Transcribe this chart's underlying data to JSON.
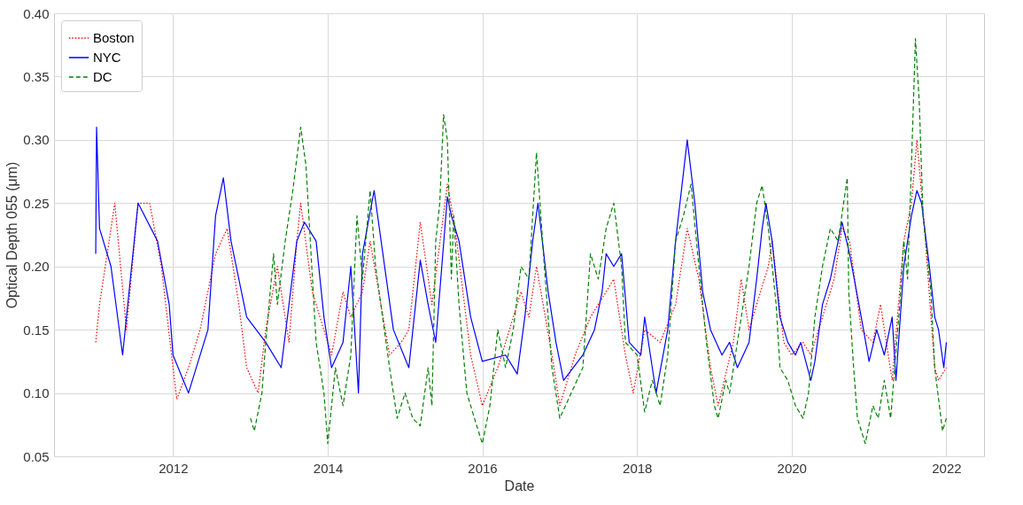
{
  "chart_data": {
    "type": "line",
    "xlabel": "Date",
    "ylabel": "Optical Depth 055 (μm)",
    "xlim": [
      "2010-06-18",
      "2022-06-28"
    ],
    "xticks": [
      {
        "value": "2012-01-01",
        "label": "2012"
      },
      {
        "value": "2014-01-01",
        "label": "2014"
      },
      {
        "value": "2016-01-01",
        "label": "2016"
      },
      {
        "value": "2018-01-01",
        "label": "2018"
      },
      {
        "value": "2020-01-01",
        "label": "2020"
      },
      {
        "value": "2022-01-01",
        "label": "2022"
      }
    ],
    "ylim": [
      0.05,
      0.4
    ],
    "yticks": [
      {
        "value": 0.05,
        "label": "0.05"
      },
      {
        "value": 0.1,
        "label": "0.10"
      },
      {
        "value": 0.15,
        "label": "0.15"
      },
      {
        "value": 0.2,
        "label": "0.20"
      },
      {
        "value": 0.25,
        "label": "0.25"
      },
      {
        "value": 0.3,
        "label": "0.30"
      },
      {
        "value": 0.35,
        "label": "0.35"
      },
      {
        "value": 0.4,
        "label": "0.40"
      }
    ],
    "grid": true,
    "legend": "top left",
    "series": [
      {
        "name": "Boston",
        "color": "#ff0000",
        "line_style": "dotted",
        "x": [
          "2011-01-01",
          "2011-01-19",
          "2011-04-01",
          "2011-05-26",
          "2011-07-20",
          "2011-09-13",
          "2011-11-07",
          "2012-01-01",
          "2012-01-19",
          "2012-03-14",
          "2012-05-08",
          "2012-07-20",
          "2012-09-13",
          "2012-11-07",
          "2012-12-14",
          "2013-02-06",
          "2013-03-14",
          "2013-05-08",
          "2013-07-02",
          "2013-08-08",
          "2013-08-26",
          "2013-10-20",
          "2013-11-25",
          "2014-01-19",
          "2014-03-14",
          "2014-04-20",
          "2014-06-14",
          "2014-07-20",
          "2014-10-20",
          "2014-12-14",
          "2015-01-19",
          "2015-03-14",
          "2015-05-08",
          "2015-07-20",
          "2015-08-26",
          "2015-11-07",
          "2016-01-01",
          "2016-03-14",
          "2016-04-20",
          "2016-07-02",
          "2016-08-08",
          "2016-09-13",
          "2016-11-25",
          "2017-01-01",
          "2017-03-14",
          "2017-05-26",
          "2017-08-08",
          "2017-09-13",
          "2017-11-07",
          "2017-12-14",
          "2018-02-06",
          "2018-04-20",
          "2018-07-02",
          "2018-08-26",
          "2018-10-20",
          "2018-12-14",
          "2019-01-19",
          "2019-04-01",
          "2019-05-08",
          "2019-06-14",
          "2019-07-20",
          "2019-09-13",
          "2019-10-01",
          "2019-11-25",
          "2020-01-01",
          "2020-02-24",
          "2020-04-01",
          "2020-05-26",
          "2020-07-20",
          "2020-08-26",
          "2020-10-01",
          "2020-11-25",
          "2021-01-19",
          "2021-02-24",
          "2021-04-20",
          "2021-06-14",
          "2021-07-20",
          "2021-08-15",
          "2021-09-20",
          "2021-11-07",
          "2021-11-25",
          "2022-01-01"
        ],
        "values": [
          0.14,
          0.17,
          0.25,
          0.15,
          0.25,
          0.25,
          0.2,
          0.12,
          0.095,
          0.12,
          0.15,
          0.21,
          0.23,
          0.17,
          0.12,
          0.1,
          0.15,
          0.2,
          0.14,
          0.22,
          0.25,
          0.18,
          0.16,
          0.13,
          0.18,
          0.16,
          0.18,
          0.22,
          0.13,
          0.14,
          0.15,
          0.235,
          0.17,
          0.265,
          0.23,
          0.13,
          0.09,
          0.12,
          0.14,
          0.18,
          0.16,
          0.2,
          0.13,
          0.09,
          0.13,
          0.16,
          0.18,
          0.19,
          0.13,
          0.1,
          0.15,
          0.14,
          0.17,
          0.23,
          0.19,
          0.12,
          0.09,
          0.14,
          0.19,
          0.15,
          0.17,
          0.2,
          0.22,
          0.14,
          0.13,
          0.14,
          0.13,
          0.16,
          0.19,
          0.23,
          0.22,
          0.15,
          0.14,
          0.17,
          0.11,
          0.22,
          0.25,
          0.3,
          0.23,
          0.12,
          0.11,
          0.12
        ]
      },
      {
        "name": "NYC",
        "color": "#0000ff",
        "line_style": "solid",
        "x": [
          "2011-01-01",
          "2011-01-05",
          "2011-01-19",
          "2011-03-14",
          "2011-05-08",
          "2011-07-20",
          "2011-10-20",
          "2011-12-14",
          "2012-01-01",
          "2012-03-14",
          "2012-06-14",
          "2012-07-20",
          "2012-08-26",
          "2012-10-01",
          "2012-12-14",
          "2013-03-14",
          "2013-05-26",
          "2013-07-02",
          "2013-08-08",
          "2013-09-13",
          "2013-11-07",
          "2013-12-14",
          "2014-01-19",
          "2014-03-14",
          "2014-04-20",
          "2014-05-26",
          "2014-06-14",
          "2014-08-08",
          "2014-11-07",
          "2015-01-19",
          "2015-03-14",
          "2015-04-20",
          "2015-05-26",
          "2015-07-20",
          "2015-08-08",
          "2015-09-13",
          "2015-11-07",
          "2016-01-01",
          "2016-04-20",
          "2016-06-14",
          "2016-07-20",
          "2016-08-26",
          "2016-09-20",
          "2016-11-07",
          "2016-12-14",
          "2017-01-19",
          "2017-04-20",
          "2017-06-14",
          "2017-07-20",
          "2017-08-08",
          "2017-09-13",
          "2017-10-20",
          "2017-11-25",
          "2018-01-19",
          "2018-02-06",
          "2018-03-14",
          "2018-04-01",
          "2018-05-26",
          "2018-07-02",
          "2018-08-26",
          "2018-10-01",
          "2018-11-07",
          "2018-12-14",
          "2019-02-06",
          "2019-03-14",
          "2019-04-20",
          "2019-06-14",
          "2019-07-20",
          "2019-08-15",
          "2019-09-02",
          "2019-10-01",
          "2019-11-07",
          "2019-12-14",
          "2020-01-19",
          "2020-02-13",
          "2020-04-01",
          "2020-04-20",
          "2020-05-26",
          "2020-07-02",
          "2020-08-08",
          "2020-08-26",
          "2020-10-01",
          "2020-11-25",
          "2021-01-01",
          "2021-02-06",
          "2021-03-14",
          "2021-04-20",
          "2021-05-08",
          "2021-06-14",
          "2021-07-20",
          "2021-08-15",
          "2021-09-06",
          "2021-10-13",
          "2021-11-07",
          "2021-11-25",
          "2021-12-20",
          "2022-01-01"
        ],
        "values": [
          0.21,
          0.31,
          0.23,
          0.2,
          0.13,
          0.25,
          0.22,
          0.17,
          0.13,
          0.1,
          0.15,
          0.24,
          0.27,
          0.22,
          0.16,
          0.14,
          0.12,
          0.17,
          0.22,
          0.235,
          0.22,
          0.16,
          0.12,
          0.14,
          0.2,
          0.1,
          0.21,
          0.26,
          0.15,
          0.12,
          0.205,
          0.17,
          0.14,
          0.255,
          0.24,
          0.22,
          0.16,
          0.125,
          0.13,
          0.115,
          0.16,
          0.22,
          0.25,
          0.18,
          0.14,
          0.11,
          0.13,
          0.15,
          0.18,
          0.21,
          0.2,
          0.21,
          0.14,
          0.13,
          0.16,
          0.12,
          0.1,
          0.15,
          0.22,
          0.3,
          0.25,
          0.18,
          0.15,
          0.13,
          0.14,
          0.12,
          0.14,
          0.19,
          0.23,
          0.25,
          0.22,
          0.16,
          0.14,
          0.13,
          0.14,
          0.11,
          0.125,
          0.17,
          0.19,
          0.22,
          0.235,
          0.21,
          0.16,
          0.125,
          0.15,
          0.13,
          0.16,
          0.11,
          0.2,
          0.24,
          0.26,
          0.25,
          0.2,
          0.16,
          0.15,
          0.12,
          0.14
        ]
      },
      {
        "name": "DC",
        "color": "#008000",
        "line_style": "dashed",
        "x": [
          "2013-01-01",
          "2013-01-19",
          "2013-02-24",
          "2013-03-14",
          "2013-04-20",
          "2013-05-08",
          "2013-06-14",
          "2013-07-20",
          "2013-08-26",
          "2013-09-20",
          "2013-11-07",
          "2013-12-14",
          "2014-01-01",
          "2014-02-06",
          "2014-03-14",
          "2014-04-20",
          "2014-05-19",
          "2014-06-14",
          "2014-07-20",
          "2014-08-15",
          "2014-10-20",
          "2014-11-25",
          "2015-01-01",
          "2015-02-06",
          "2015-03-14",
          "2015-04-20",
          "2015-05-08",
          "2015-05-26",
          "2015-06-14",
          "2015-07-02",
          "2015-07-20",
          "2015-08-08",
          "2015-08-19",
          "2015-09-13",
          "2015-10-20",
          "2015-11-25",
          "2016-01-01",
          "2016-02-06",
          "2016-03-14",
          "2016-04-20",
          "2016-05-26",
          "2016-07-02",
          "2016-08-08",
          "2016-09-13",
          "2016-10-20",
          "2016-11-25",
          "2017-01-01",
          "2017-02-24",
          "2017-04-20",
          "2017-05-26",
          "2017-07-02",
          "2017-08-08",
          "2017-09-13",
          "2017-10-20",
          "2017-11-07",
          "2018-01-01",
          "2018-02-06",
          "2018-03-14",
          "2018-04-20",
          "2018-05-26",
          "2018-07-02",
          "2018-08-08",
          "2018-09-13",
          "2018-10-20",
          "2018-11-25",
          "2019-01-01",
          "2019-01-19",
          "2019-02-24",
          "2019-03-14",
          "2019-04-20",
          "2019-06-14",
          "2019-07-20",
          "2019-08-15",
          "2019-09-13",
          "2019-10-20",
          "2019-11-07",
          "2019-12-14",
          "2020-01-19",
          "2020-02-24",
          "2020-03-21",
          "2020-04-20",
          "2020-05-26",
          "2020-07-02",
          "2020-08-08",
          "2020-09-20",
          "2020-09-27",
          "2020-10-20",
          "2020-11-07",
          "2020-12-14",
          "2021-01-19",
          "2021-02-13",
          "2021-03-14",
          "2021-04-13",
          "2021-05-26",
          "2021-06-14",
          "2021-07-02",
          "2021-07-20",
          "2021-08-08",
          "2021-08-26",
          "2021-09-13",
          "2021-10-20",
          "2021-11-07",
          "2021-12-14",
          "2022-01-01"
        ],
        "values": [
          0.08,
          0.07,
          0.1,
          0.14,
          0.21,
          0.17,
          0.22,
          0.26,
          0.31,
          0.28,
          0.14,
          0.1,
          0.06,
          0.12,
          0.09,
          0.13,
          0.24,
          0.19,
          0.26,
          0.2,
          0.12,
          0.08,
          0.1,
          0.08,
          0.074,
          0.12,
          0.09,
          0.22,
          0.25,
          0.32,
          0.3,
          0.19,
          0.24,
          0.17,
          0.1,
          0.08,
          0.06,
          0.09,
          0.15,
          0.12,
          0.15,
          0.2,
          0.19,
          0.29,
          0.2,
          0.12,
          0.08,
          0.1,
          0.12,
          0.21,
          0.19,
          0.23,
          0.25,
          0.2,
          0.14,
          0.13,
          0.085,
          0.11,
          0.09,
          0.13,
          0.22,
          0.24,
          0.265,
          0.2,
          0.14,
          0.09,
          0.08,
          0.11,
          0.1,
          0.14,
          0.2,
          0.25,
          0.264,
          0.23,
          0.17,
          0.12,
          0.11,
          0.09,
          0.08,
          0.1,
          0.16,
          0.2,
          0.23,
          0.22,
          0.27,
          0.18,
          0.12,
          0.08,
          0.06,
          0.09,
          0.08,
          0.11,
          0.08,
          0.17,
          0.22,
          0.19,
          0.28,
          0.38,
          0.33,
          0.24,
          0.18,
          0.12,
          0.07,
          0.08
        ]
      }
    ]
  }
}
